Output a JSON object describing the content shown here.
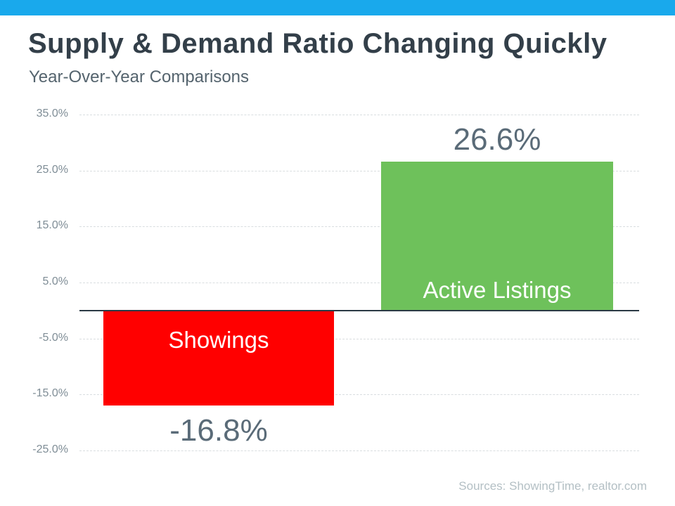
{
  "accent_bar_color": "#19A9EC",
  "header": {
    "title": "Supply & Demand Ratio Changing Quickly",
    "subtitle": "Year-Over-Year Comparisons"
  },
  "footer": {
    "source": "Sources: ShowingTime, realtor.com"
  },
  "chart_data": {
    "type": "bar",
    "title": "Supply & Demand Ratio Changing Quickly",
    "subtitle": "Year-Over-Year Comparisons",
    "categories": [
      "Showings",
      "Active Listings"
    ],
    "values": [
      -16.8,
      26.6
    ],
    "value_labels": [
      "-16.8%",
      "26.6%"
    ],
    "bar_colors": [
      "#FF0000",
      "#6EC15B"
    ],
    "bar_label_position": [
      "inside-top",
      "inside-bottom"
    ],
    "xlabel": "",
    "ylabel": "",
    "ylim": [
      -25,
      35
    ],
    "y_ticks": [
      {
        "value": 35,
        "label": "35.0%"
      },
      {
        "value": 25,
        "label": "25.0%"
      },
      {
        "value": 15,
        "label": "15.0%"
      },
      {
        "value": 5,
        "label": "5.0%"
      },
      {
        "value": -5,
        "label": "-5.0%"
      },
      {
        "value": -15,
        "label": "-15.0%"
      },
      {
        "value": -25,
        "label": "-25.0%"
      }
    ],
    "grid": true,
    "legend": "none",
    "colors": {
      "gridline": "#D9DDE0",
      "zero_line": "#2B3A45",
      "tick_label": "#7F8D96",
      "value_label": "#5A6B78",
      "bar_text": "#FFFFFF"
    }
  }
}
